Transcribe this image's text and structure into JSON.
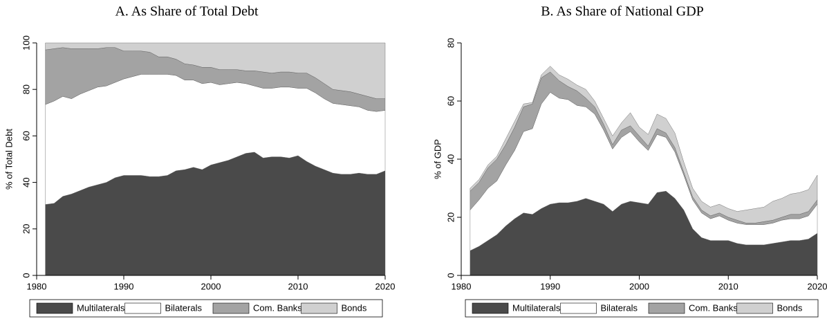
{
  "chart_data": [
    {
      "type": "stacked_area",
      "title": "A. As Share of Total Debt",
      "y_label": "% of Total Debt",
      "x": [
        1981,
        1982,
        1983,
        1984,
        1985,
        1986,
        1987,
        1988,
        1989,
        1990,
        1991,
        1992,
        1993,
        1994,
        1995,
        1996,
        1997,
        1998,
        1999,
        2000,
        2001,
        2002,
        2003,
        2004,
        2005,
        2006,
        2007,
        2008,
        2009,
        2010,
        2011,
        2012,
        2013,
        2014,
        2015,
        2016,
        2017,
        2018,
        2019,
        2020
      ],
      "xlim": [
        1980,
        2020
      ],
      "xticks": [
        1980,
        1990,
        2000,
        2010,
        2020
      ],
      "ylim": [
        0,
        100
      ],
      "yticks": [
        0,
        20,
        40,
        60,
        80,
        100
      ],
      "series": [
        {
          "name": "Multilaterals",
          "color": "#4a4a4a",
          "values": [
            30.5,
            31,
            34,
            35,
            36.5,
            38,
            39,
            40,
            42,
            43,
            43,
            43,
            42.5,
            42.5,
            43,
            45,
            45.5,
            46.5,
            45.5,
            47.5,
            48.5,
            49.5,
            51,
            52.5,
            53,
            50.5,
            51,
            51,
            50.5,
            51.5,
            49,
            47,
            45.5,
            44,
            43.5,
            43.5,
            44,
            43.5,
            43.5,
            45
          ]
        },
        {
          "name": "Bilaterals",
          "color": "#ffffff",
          "values": [
            43,
            44,
            43,
            41,
            41.5,
            41.5,
            42,
            41.5,
            41,
            41.5,
            42.5,
            43.5,
            44,
            44,
            43.5,
            41,
            38.5,
            37.5,
            37,
            35.5,
            33.5,
            33,
            32,
            30,
            28.5,
            30,
            29.5,
            30,
            30.5,
            29,
            31.5,
            31.5,
            30.5,
            30,
            30,
            29.5,
            28.5,
            27.5,
            27,
            26
          ]
        },
        {
          "name": "Com. Banks",
          "color": "#a3a3a3",
          "values": [
            23.5,
            22.5,
            21,
            21.5,
            19.5,
            18,
            16.5,
            16.5,
            15,
            12,
            11,
            10,
            9.5,
            7.5,
            7.5,
            7,
            7,
            6.5,
            7,
            6.5,
            6.5,
            6,
            5.5,
            5.5,
            6.5,
            7,
            6.5,
            6.5,
            6.5,
            6.5,
            6.5,
            6.5,
            6.5,
            6,
            6,
            6,
            5.5,
            6,
            5.5,
            5
          ]
        },
        {
          "name": "Bonds",
          "color": "#d0d0d0",
          "values": [
            3,
            2.5,
            2,
            2.5,
            2.5,
            2.5,
            2.5,
            2,
            2,
            3.5,
            3.5,
            3.5,
            4,
            6,
            6,
            7,
            9,
            9.5,
            10.5,
            10.5,
            11.5,
            11.5,
            11.5,
            12,
            12,
            12.5,
            13,
            12.5,
            12.5,
            13,
            13,
            15,
            17.5,
            20,
            20.5,
            21,
            22,
            23,
            24,
            24
          ]
        }
      ]
    },
    {
      "type": "stacked_area",
      "title": "B. As Share of National GDP",
      "y_label": "% of GDP",
      "x": [
        1981,
        1982,
        1983,
        1984,
        1985,
        1986,
        1987,
        1988,
        1989,
        1990,
        1991,
        1992,
        1993,
        1994,
        1995,
        1996,
        1997,
        1998,
        1999,
        2000,
        2001,
        2002,
        2003,
        2004,
        2005,
        2006,
        2007,
        2008,
        2009,
        2010,
        2011,
        2012,
        2013,
        2014,
        2015,
        2016,
        2017,
        2018,
        2019,
        2020
      ],
      "xlim": [
        1980,
        2020
      ],
      "xticks": [
        1980,
        1990,
        2000,
        2010,
        2020
      ],
      "ylim": [
        0,
        80
      ],
      "yticks": [
        0,
        20,
        40,
        60,
        80
      ],
      "series": [
        {
          "name": "Multilaterals",
          "color": "#4a4a4a",
          "values": [
            8.5,
            10,
            12,
            14,
            17,
            19.5,
            21.5,
            21,
            23,
            24.5,
            25,
            25,
            25.5,
            26.5,
            25.5,
            24.5,
            22,
            24.5,
            25.5,
            25,
            24.5,
            28.5,
            29,
            26.5,
            22.5,
            16,
            13,
            12,
            12,
            12,
            11,
            10.5,
            10.5,
            10.5,
            11,
            11.5,
            12,
            12,
            12.5,
            14.5
          ]
        },
        {
          "name": "Bilaterals",
          "color": "#ffffff",
          "values": [
            14,
            16,
            18,
            18.5,
            21,
            23.5,
            28,
            29.5,
            36,
            38.5,
            36,
            35.5,
            33,
            31.5,
            30,
            25.5,
            21.5,
            23,
            24,
            21,
            18.5,
            20,
            18.5,
            16,
            12,
            10,
            8.5,
            7.5,
            8.5,
            7,
            7,
            7,
            7,
            7,
            7,
            7.5,
            7.5,
            7.5,
            8,
            10
          ]
        },
        {
          "name": "Com. Banks",
          "color": "#a3a3a3",
          "values": [
            6.5,
            6,
            7,
            7.5,
            7,
            8,
            8.5,
            8.5,
            9,
            7,
            6,
            4.5,
            5,
            3,
            2.5,
            2,
            1.5,
            2.5,
            2,
            2,
            1.5,
            2,
            1.5,
            1.5,
            1,
            1,
            1,
            1,
            1,
            1,
            1,
            0.5,
            0.5,
            1,
            1,
            1,
            1.5,
            1.5,
            1.5,
            1.5
          ]
        },
        {
          "name": "Bonds",
          "color": "#d0d0d0",
          "values": [
            1,
            1,
            1,
            1,
            2,
            2,
            1,
            0.5,
            1,
            2,
            2,
            2.5,
            2,
            3,
            2,
            2,
            3,
            2.5,
            4.5,
            3,
            4,
            5,
            5,
            5,
            3.5,
            3,
            3,
            3,
            3,
            3,
            3,
            4.5,
            5,
            5,
            6.5,
            6.5,
            7,
            7.5,
            7.5,
            8.5
          ]
        }
      ]
    }
  ]
}
